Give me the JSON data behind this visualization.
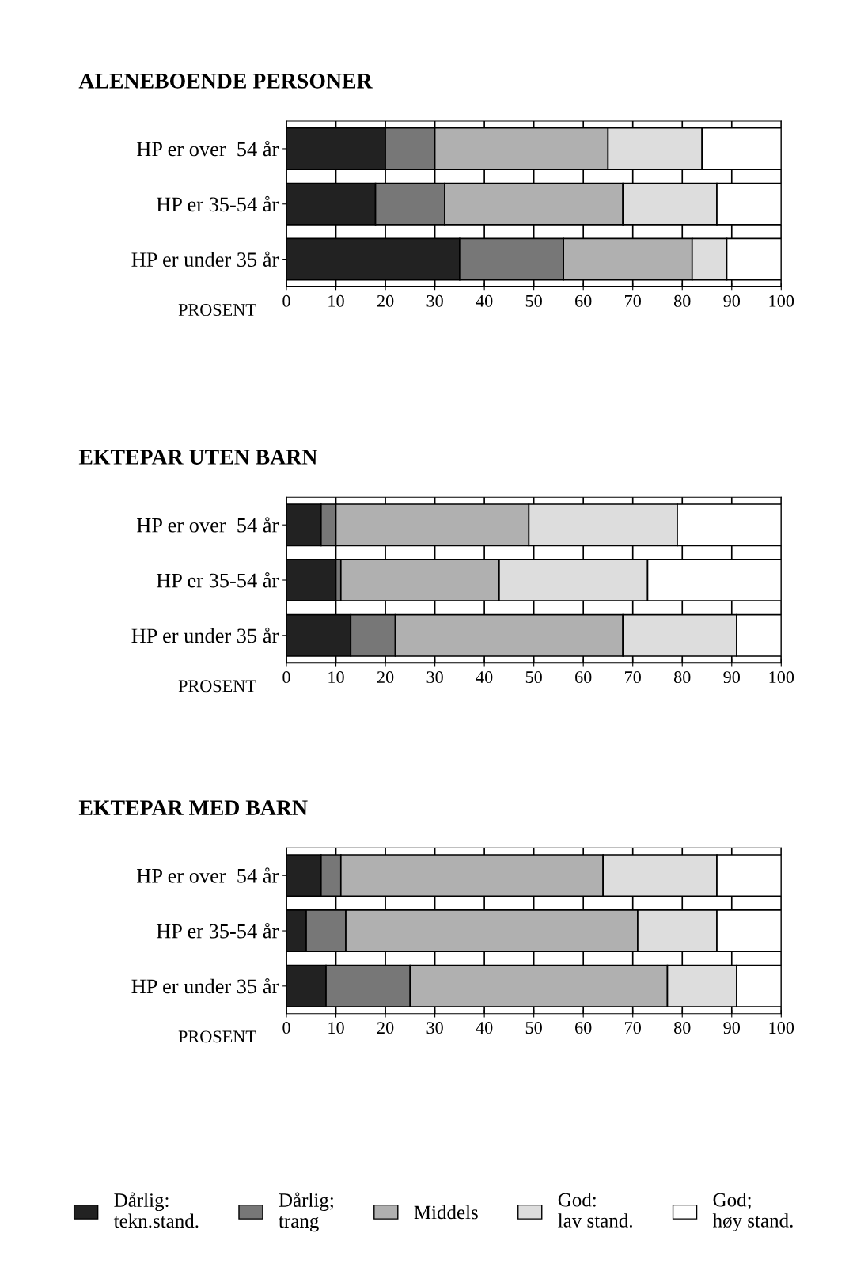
{
  "chart_data": [
    {
      "type": "bar",
      "orientation": "horizontal",
      "stacked": true,
      "title": "ALENEBOENDE PERSONER",
      "xlabel": "PROSENT",
      "categories": [
        "HP er over  54 år",
        "HP er 35-54 år",
        "HP er under 35 år"
      ],
      "xlim": [
        0,
        100
      ],
      "xticks": [
        0,
        10,
        20,
        30,
        40,
        50,
        60,
        70,
        80,
        90,
        100
      ],
      "grid": "x",
      "series": [
        {
          "color": "#222222",
          "values": [
            20,
            18,
            35
          ]
        },
        {
          "color": "#777777",
          "values": [
            10,
            14,
            21
          ]
        },
        {
          "color": "#b0b0b0",
          "values": [
            35,
            36,
            26
          ]
        },
        {
          "color": "#dddddd",
          "values": [
            19,
            19,
            7
          ]
        },
        {
          "color": "#ffffff",
          "values": [
            16,
            13,
            11
          ]
        }
      ]
    },
    {
      "type": "bar",
      "orientation": "horizontal",
      "stacked": true,
      "title": "EKTEPAR UTEN BARN",
      "xlabel": "PROSENT",
      "categories": [
        "HP er over  54 år",
        "HP er 35-54 år",
        "HP er under 35 år"
      ],
      "xlim": [
        0,
        100
      ],
      "xticks": [
        0,
        10,
        20,
        30,
        40,
        50,
        60,
        70,
        80,
        90,
        100
      ],
      "grid": "x",
      "series": [
        {
          "color": "#222222",
          "values": [
            7,
            10,
            13
          ]
        },
        {
          "color": "#777777",
          "values": [
            3,
            1,
            9
          ]
        },
        {
          "color": "#b0b0b0",
          "values": [
            39,
            32,
            46
          ]
        },
        {
          "color": "#dddddd",
          "values": [
            30,
            30,
            23
          ]
        },
        {
          "color": "#ffffff",
          "values": [
            21,
            27,
            9
          ]
        }
      ]
    },
    {
      "type": "bar",
      "orientation": "horizontal",
      "stacked": true,
      "title": "EKTEPAR MED BARN",
      "xlabel": "PROSENT",
      "categories": [
        "HP er over  54 år",
        "HP er 35-54 år",
        "HP er under 35 år"
      ],
      "xlim": [
        0,
        100
      ],
      "xticks": [
        0,
        10,
        20,
        30,
        40,
        50,
        60,
        70,
        80,
        90,
        100
      ],
      "grid": "x",
      "legend": "bottom",
      "series": [
        {
          "name": "Dårlig:\ntekn.stand.",
          "color": "#222222",
          "values": [
            7,
            4,
            8
          ]
        },
        {
          "name": "Dårlig;\ntrang",
          "color": "#777777",
          "values": [
            4,
            8,
            17
          ]
        },
        {
          "name": "Middels",
          "color": "#b0b0b0",
          "values": [
            53,
            59,
            52
          ]
        },
        {
          "name": "God:\nlav stand.",
          "color": "#dddddd",
          "values": [
            23,
            16,
            14
          ]
        },
        {
          "name": "God;\nhøy stand.",
          "color": "#ffffff",
          "values": [
            13,
            13,
            9
          ]
        }
      ]
    }
  ]
}
